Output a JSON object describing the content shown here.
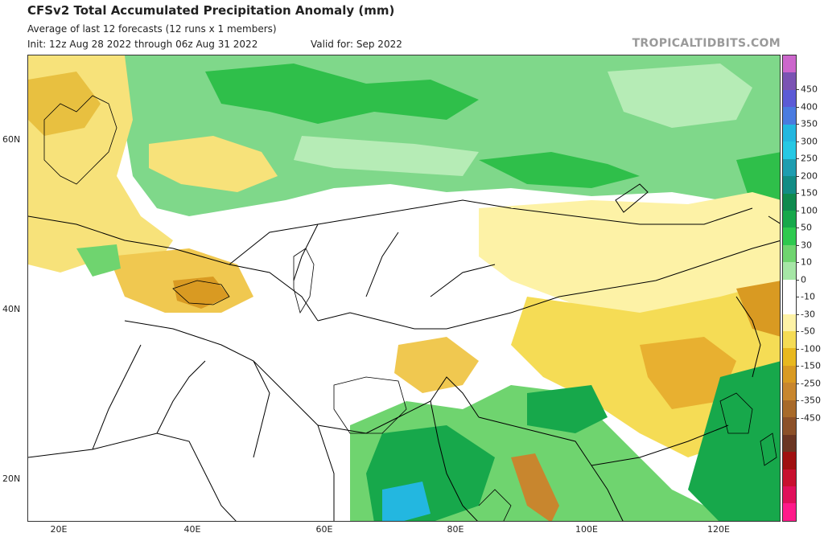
{
  "header": {
    "title": "CFSv2 Total Accumulated Precipitation Anomaly (mm)",
    "subtitle": "Average of last 12 forecasts (12 runs x 1 members)",
    "init": "Init: 12z Aug 28 2022 through 06z Aug 31 2022",
    "valid": "Valid for: Sep 2022",
    "brand": "TROPICALTIDBITS.COM"
  },
  "map": {
    "lat_labels": [
      "60N",
      "40N",
      "20N"
    ],
    "lon_labels": [
      "20E",
      "40E",
      "60E",
      "80E",
      "100E",
      "120E"
    ]
  },
  "colorbar": {
    "labels": [
      "450",
      "400",
      "350",
      "300",
      "250",
      "200",
      "150",
      "100",
      "50",
      "30",
      "10",
      "0",
      "-10",
      "-30",
      "-50",
      "-100",
      "-150",
      "-250",
      "-350",
      "-450"
    ],
    "colors": [
      "#cc66cc",
      "#7b53b3",
      "#5c5ad6",
      "#4a7be0",
      "#23b7e0",
      "#26c8e4",
      "#1e9db0",
      "#128c85",
      "#0e8a4e",
      "#17a84b",
      "#2ec94f",
      "#6fd46f",
      "#a6e6a6",
      "#ffffff",
      "#ffffff",
      "#fdf2a6",
      "#f5dc55",
      "#e8b81f",
      "#d99a22",
      "#c8862e",
      "#a86a2a",
      "#8c5028",
      "#6b3522",
      "#a01010",
      "#c8102e",
      "#e0105a",
      "#ff1a8a"
    ]
  }
}
